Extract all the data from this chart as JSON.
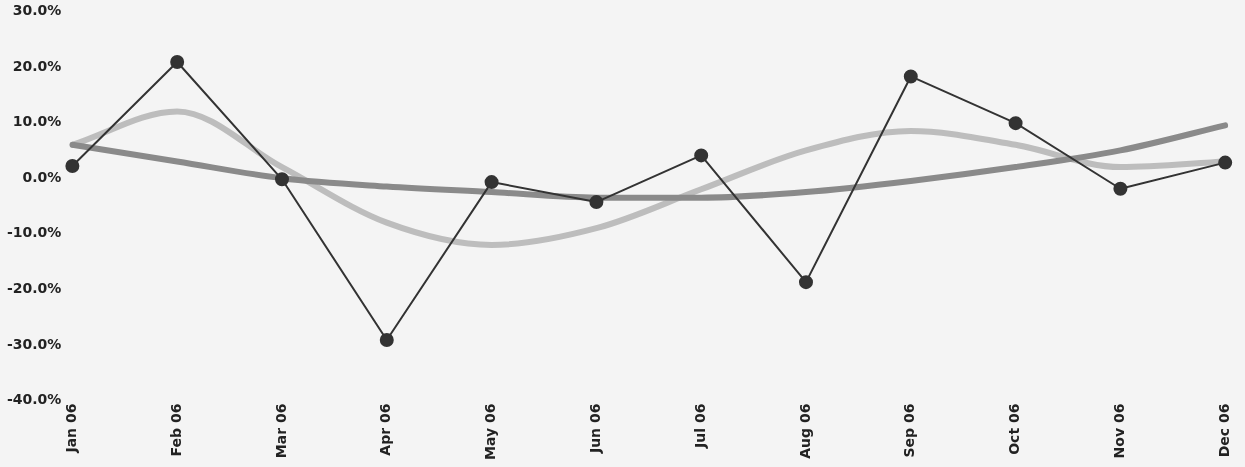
{
  "chart_data": {
    "type": "line",
    "categories": [
      "Jan 06",
      "Feb 06",
      "Mar 06",
      "Apr 06",
      "May 06",
      "Jun 06",
      "Jul 06",
      "Aug 06",
      "Sep 06",
      "Oct 06",
      "Nov 06",
      "Dec 06"
    ],
    "series": [
      {
        "color": "#bdbdbd",
        "marker": "none",
        "values": [
          6,
          12,
          2,
          -8,
          -12,
          -9,
          -2,
          5,
          8.5,
          6,
          2,
          3
        ]
      },
      {
        "color": "#8a8a8a",
        "marker": "none",
        "values": [
          6,
          3,
          0,
          -1.5,
          -2.5,
          -3.5,
          -3.5,
          -2.5,
          -0.5,
          2,
          5,
          9.5
        ]
      },
      {
        "color": "#333333",
        "marker": "circle",
        "values": [
          2.2,
          20.9,
          -0.2,
          -29.1,
          -0.7,
          -4.3,
          4.1,
          -18.7,
          18.3,
          9.9,
          -1.9,
          2.8
        ]
      }
    ],
    "ylim": [
      -40,
      30
    ],
    "yticks": [
      {
        "value": -40,
        "label": "-40.0%"
      },
      {
        "value": -30,
        "label": "-30.0%"
      },
      {
        "value": -20,
        "label": "-20.0%"
      },
      {
        "value": -10,
        "label": "-10.0%"
      },
      {
        "value": 0,
        "label": "0.0%"
      },
      {
        "value": 10,
        "label": "10.0%"
      },
      {
        "value": 20,
        "label": "20.0%"
      },
      {
        "value": 30,
        "label": "30.0%"
      }
    ],
    "grid": false,
    "legend": false,
    "line_style": "solid"
  }
}
